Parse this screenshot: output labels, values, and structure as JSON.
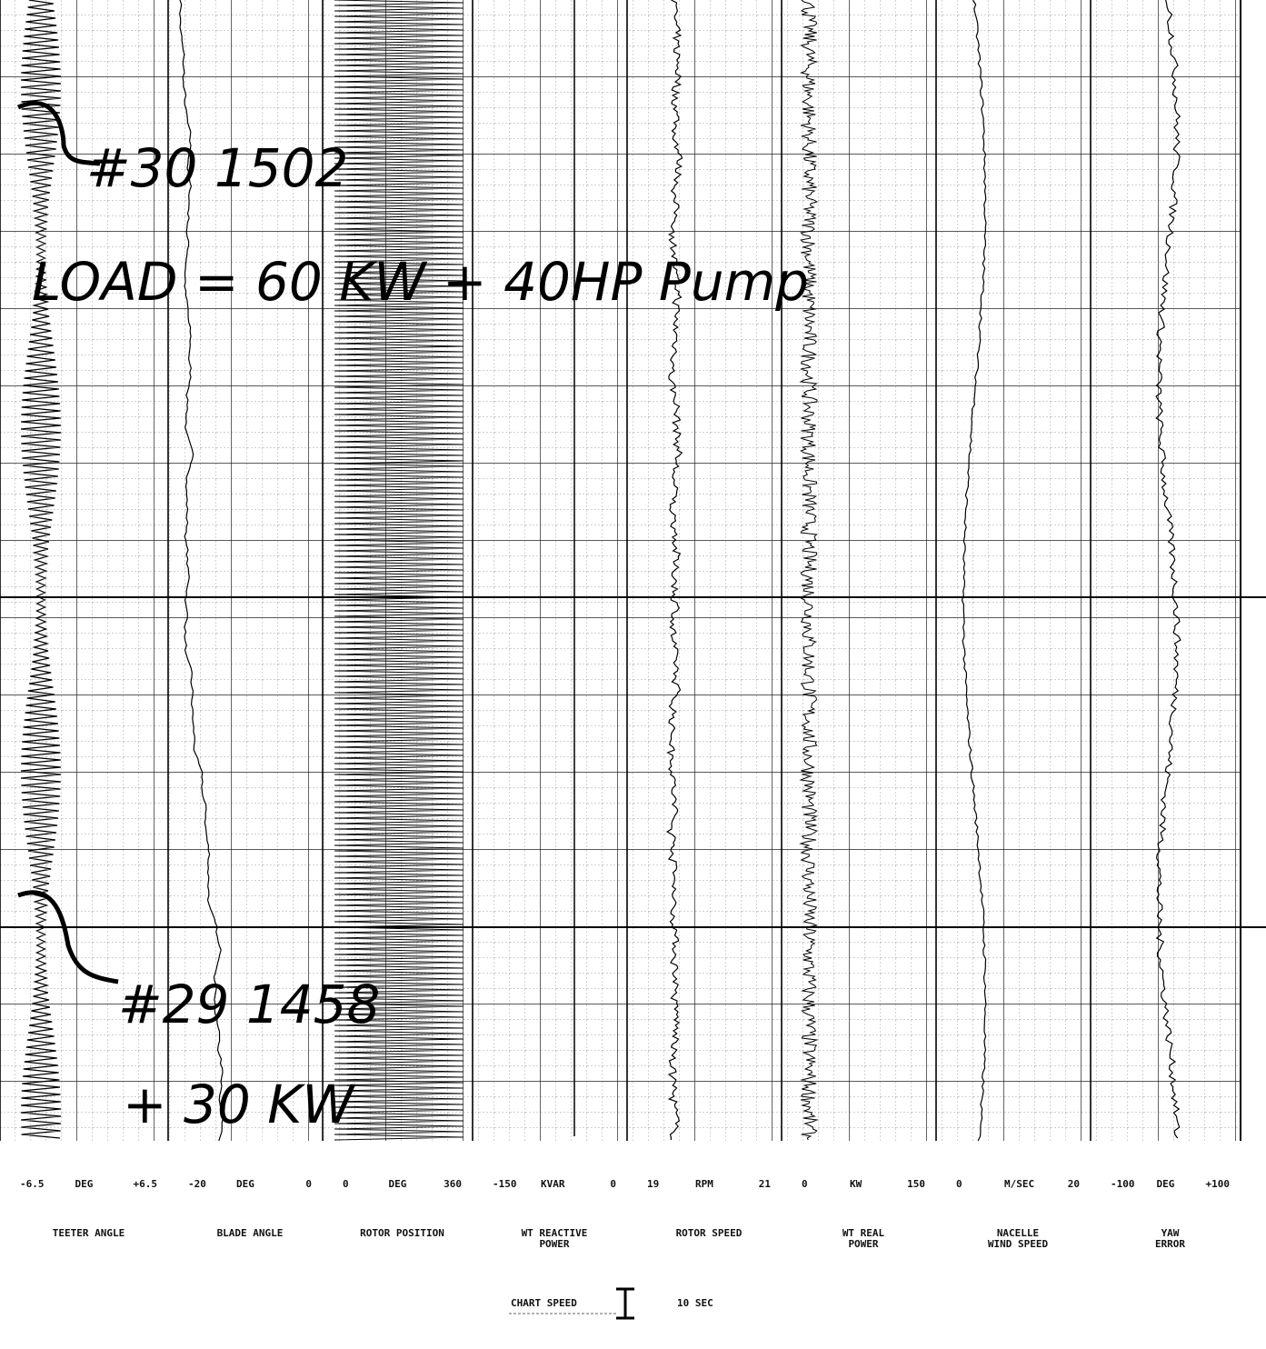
{
  "channels": [
    {
      "min": "-6.5",
      "unit": "DEG",
      "max": "+6.5",
      "name": [
        "TEETER ANGLE"
      ]
    },
    {
      "min": "-20",
      "unit": "DEG",
      "max": "0",
      "name": [
        "BLADE ANGLE"
      ]
    },
    {
      "min": "0",
      "unit": "DEG",
      "max": "360",
      "name": [
        "ROTOR POSITION"
      ]
    },
    {
      "min": "-150",
      "unit": "KVAR",
      "max": "0",
      "name": [
        "WT REACTIVE",
        "POWER"
      ]
    },
    {
      "min": "19",
      "unit": "RPM",
      "max": "21",
      "name": [
        "ROTOR SPEED"
      ]
    },
    {
      "min": "0",
      "unit": "KW",
      "max": "150",
      "name": [
        "WT REAL",
        "POWER"
      ]
    },
    {
      "min": "0",
      "unit": "M/SEC",
      "max": "20",
      "name": [
        "NACELLE",
        "WIND SPEED"
      ]
    },
    {
      "min": "-100",
      "unit": "DEG",
      "max": "+100",
      "name": [
        "YAW",
        "ERROR"
      ]
    }
  ],
  "chart_speed": {
    "label": "CHART SPEED",
    "value": "10 SEC"
  },
  "annotations": {
    "run_a": "#30  1502",
    "load": "LOAD = 60 KW + 40HP Pump",
    "run_b": "#29  1458",
    "added": "+ 30 KW"
  }
}
